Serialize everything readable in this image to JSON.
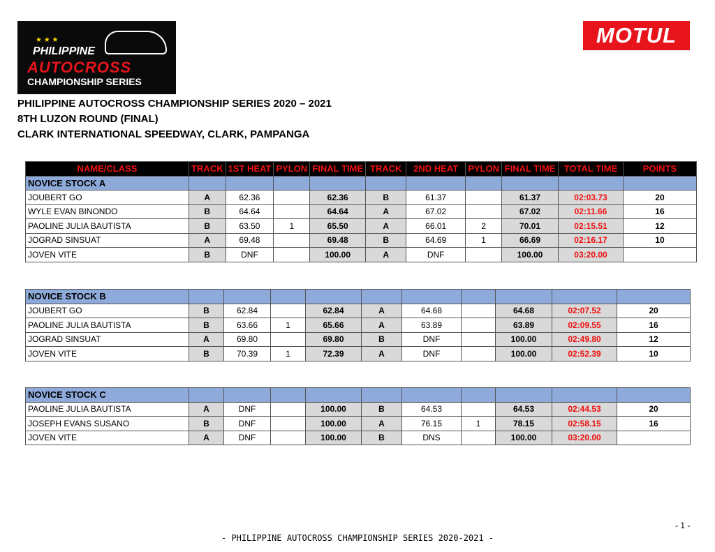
{
  "logo": {
    "text": [
      "PHILIPPINE",
      "AUTOCROSS",
      "CHAMPIONSHIP SERIES"
    ]
  },
  "sponsor": "MOTUL",
  "titles": [
    "PHILIPPINE AUTOCROSS CHAMPIONSHIP SERIES 2020 – 2021",
    "8TH LUZON ROUND (FINAL)",
    "CLARK INTERNATIONAL SPEEDWAY, CLARK, PAMPANGA"
  ],
  "columns": [
    "NAME/CLASS",
    "TRACK",
    "1ST HEAT",
    "PYLON",
    "FINAL TIME",
    "TRACK",
    "2ND HEAT",
    "PYLON",
    "FINAL TIME",
    "TOTAL TIME",
    "POINTS"
  ],
  "groups": [
    {
      "name": "NOVICE STOCK A",
      "rows": [
        [
          "JOUBERT GO",
          "A",
          "62.36",
          "",
          "62.36",
          "B",
          "61.37",
          "",
          "61.37",
          "02:03.73",
          "20"
        ],
        [
          "WYLE EVAN BINONDO",
          "B",
          "64.64",
          "",
          "64.64",
          "A",
          "67.02",
          "",
          "67.02",
          "02:11.66",
          "16"
        ],
        [
          "PAOLINE JULIA BAUTISTA",
          "B",
          "63.50",
          "1",
          "65.50",
          "A",
          "66.01",
          "2",
          "70.01",
          "02:15.51",
          "12"
        ],
        [
          "JOGRAD SINSUAT",
          "A",
          "69.48",
          "",
          "69.48",
          "B",
          "64.69",
          "1",
          "66.69",
          "02:16.17",
          "10"
        ],
        [
          "JOVEN VITE",
          "B",
          "DNF",
          "",
          "100.00",
          "A",
          "DNF",
          "",
          "100.00",
          "03:20.00",
          ""
        ]
      ]
    },
    {
      "name": "NOVICE STOCK B",
      "rows": [
        [
          "JOUBERT GO",
          "B",
          "62.84",
          "",
          "62.84",
          "A",
          "64.68",
          "",
          "64.68",
          "02:07.52",
          "20"
        ],
        [
          "PAOLINE JULIA BAUTISTA",
          "B",
          "63.66",
          "1",
          "65.66",
          "A",
          "63.89",
          "",
          "63.89",
          "02:09.55",
          "16"
        ],
        [
          "JOGRAD SINSUAT",
          "A",
          "69.80",
          "",
          "69.80",
          "B",
          "DNF",
          "",
          "100.00",
          "02:49.80",
          "12"
        ],
        [
          "JOVEN VITE",
          "B",
          "70.39",
          "1",
          "72.39",
          "A",
          "DNF",
          "",
          "100.00",
          "02:52.39",
          "10"
        ]
      ]
    },
    {
      "name": "NOVICE STOCK C",
      "rows": [
        [
          "PAOLINE JULIA BAUTISTA",
          "A",
          "DNF",
          "",
          "100.00",
          "B",
          "64.53",
          "",
          "64.53",
          "02:44.53",
          "20"
        ],
        [
          "JOSEPH EVANS SUSANO",
          "B",
          "DNF",
          "",
          "100.00",
          "A",
          "76.15",
          "1",
          "78.15",
          "02:58.15",
          "16"
        ],
        [
          "JOVEN VITE",
          "A",
          "DNF",
          "",
          "100.00",
          "B",
          "DNS",
          "",
          "100.00",
          "03:20.00",
          ""
        ]
      ]
    }
  ],
  "page_number": "- 1 -",
  "footer": "- PHILIPPINE AUTOCROSS CHAMPIONSHIP SERIES 2020-2021 -"
}
